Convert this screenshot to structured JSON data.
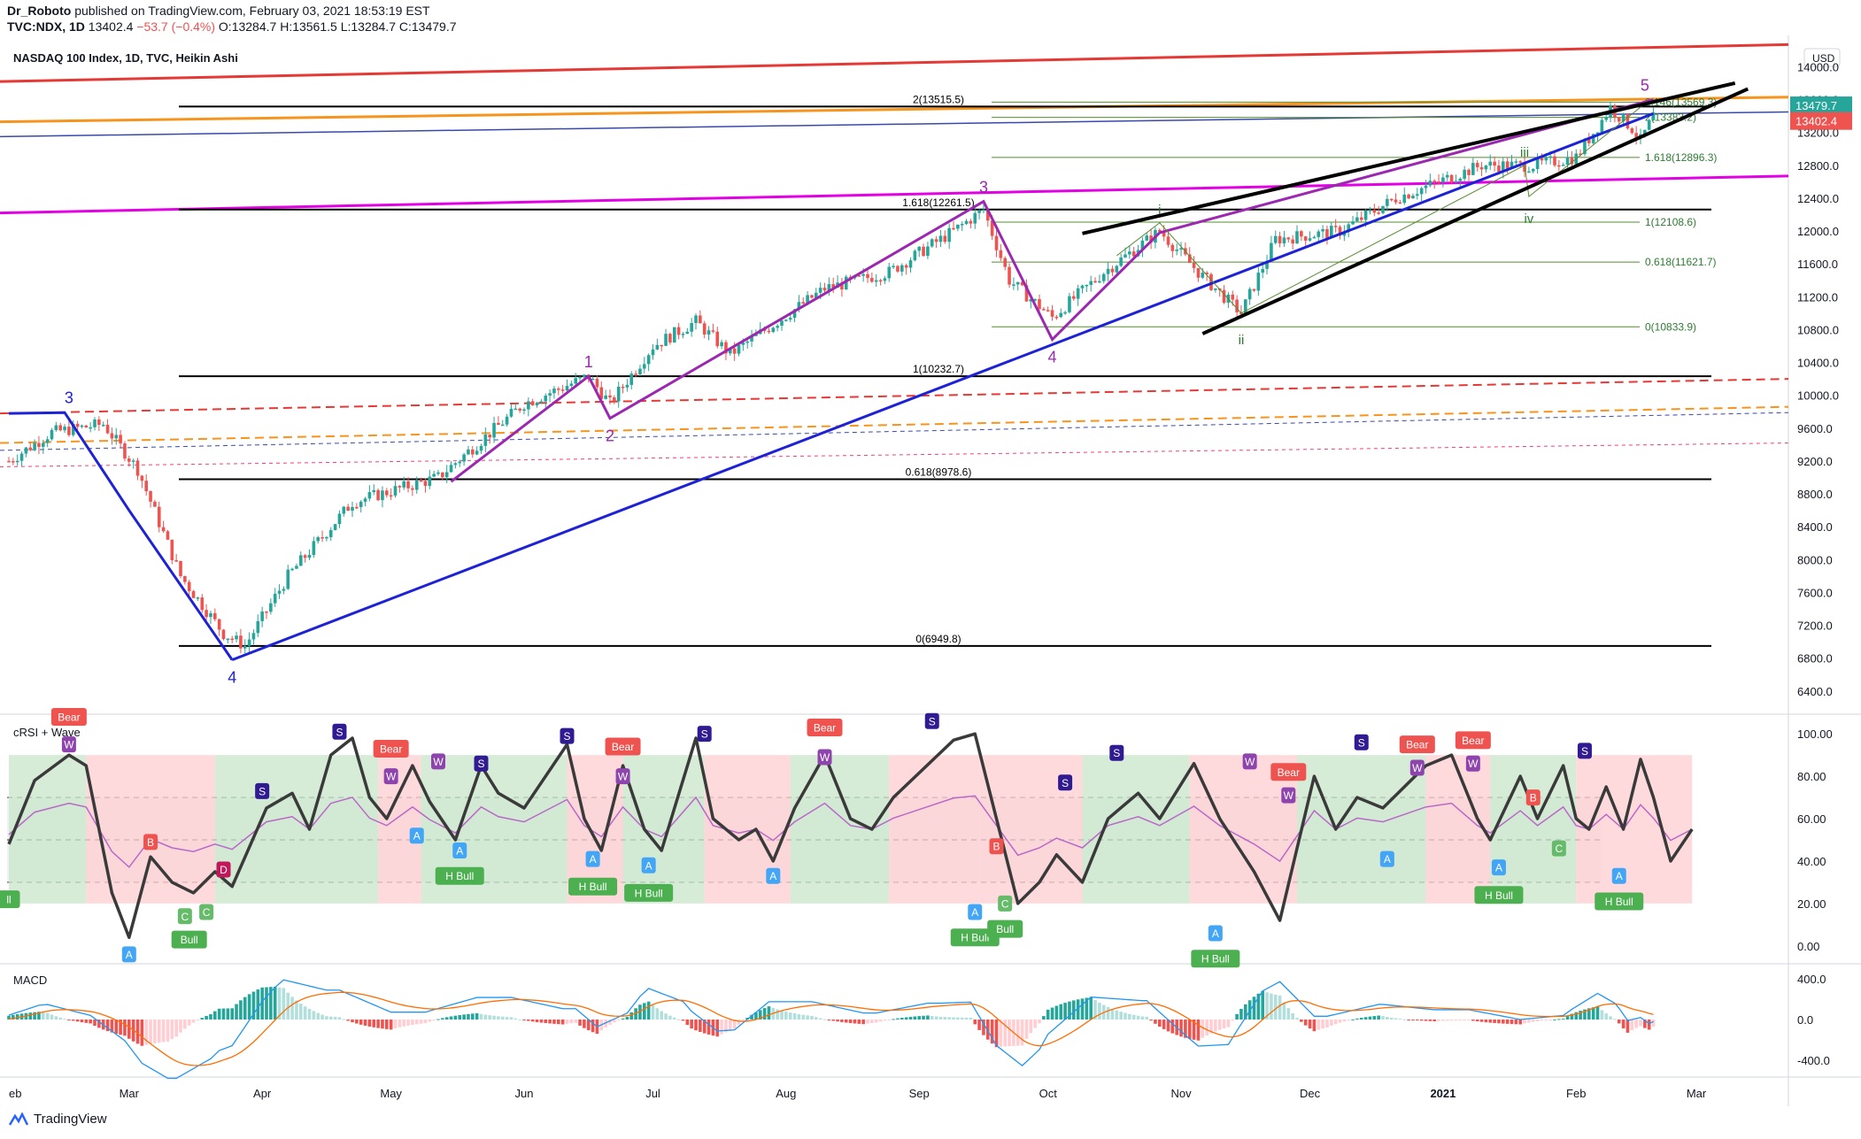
{
  "header": {
    "publisher": "Dr_Roboto",
    "published_text": "published on TradingView.com, February 03, 2021 18:53:19 EST",
    "symbol": "TVC:NDX, 1D",
    "price": "13402.4",
    "change": "−53.7 (−0.4%)",
    "ohlc": [
      "O:13284.7",
      "H:13561.5",
      "L:13284.7",
      "C:13479.7"
    ]
  },
  "brand": "TradingView",
  "colors": {
    "up": "#26a69a",
    "down": "#ef5350",
    "purple": "#9c27b0",
    "blue": "#1e22d6",
    "magenta": "#e400e4",
    "orange": "#f7941d",
    "red_line": "#e53935",
    "black": "#000000",
    "fib_green": "#2e7d32"
  },
  "chart_data": [
    {
      "type": "candlestick",
      "title": "NASDAQ 100 Index, 1D, TVC, Heikin Ashi",
      "currency": "USD",
      "y_ticks": [
        6400,
        6800,
        7200,
        7600,
        8000,
        8400,
        8800,
        9200,
        9600,
        10000,
        10400,
        10800,
        11200,
        11600,
        12000,
        12400,
        12800,
        13200,
        13600,
        14000
      ],
      "ylim": [
        6140,
        14220
      ],
      "x_ticks": [
        "eb",
        "Mar",
        "Apr",
        "May",
        "Jun",
        "Jul",
        "Aug",
        "Sep",
        "Oct",
        "Nov",
        "Dec",
        "2021",
        "Feb",
        "Mar"
      ],
      "last_price": "13479.7",
      "prev_price": "13402.4",
      "waypoints": [
        {
          "d": 0,
          "v": 9200
        },
        {
          "d": 10,
          "v": 9550
        },
        {
          "d": 22,
          "v": 9650
        },
        {
          "d": 30,
          "v": 9100
        },
        {
          "d": 40,
          "v": 7800
        },
        {
          "d": 50,
          "v": 7100
        },
        {
          "d": 55,
          "v": 6950
        },
        {
          "d": 65,
          "v": 7800
        },
        {
          "d": 80,
          "v": 8700
        },
        {
          "d": 100,
          "v": 9000
        },
        {
          "d": 120,
          "v": 9900
        },
        {
          "d": 135,
          "v": 10232
        },
        {
          "d": 140,
          "v": 9900
        },
        {
          "d": 150,
          "v": 10600
        },
        {
          "d": 160,
          "v": 10900
        },
        {
          "d": 168,
          "v": 10500
        },
        {
          "d": 190,
          "v": 11300
        },
        {
          "d": 205,
          "v": 11500
        },
        {
          "d": 220,
          "v": 12000
        },
        {
          "d": 227,
          "v": 12260
        },
        {
          "d": 233,
          "v": 11400
        },
        {
          "d": 243,
          "v": 10950
        },
        {
          "d": 255,
          "v": 11500
        },
        {
          "d": 268,
          "v": 12000
        },
        {
          "d": 277,
          "v": 11500
        },
        {
          "d": 287,
          "v": 11000
        },
        {
          "d": 295,
          "v": 11900
        },
        {
          "d": 310,
          "v": 12000
        },
        {
          "d": 323,
          "v": 12400
        },
        {
          "d": 333,
          "v": 12600
        },
        {
          "d": 343,
          "v": 12800
        },
        {
          "d": 355,
          "v": 12800
        },
        {
          "d": 365,
          "v": 12900
        },
        {
          "d": 373,
          "v": 13500
        },
        {
          "d": 378,
          "v": 13250
        },
        {
          "d": 380,
          "v": 13100
        },
        {
          "d": 383,
          "v": 13400
        }
      ],
      "fib_black": [
        {
          "label": "2(13515.5)",
          "value": 13515.5
        },
        {
          "label": "1.618(12261.5)",
          "value": 12261.5
        },
        {
          "label": "1(10232.7)",
          "value": 10232.7
        },
        {
          "label": "0.618(8978.6)",
          "value": 8978.6
        },
        {
          "label": "0(6949.8)",
          "value": 6949.8
        }
      ],
      "fib_green": [
        {
          "label": "2.146(13569.3)",
          "value": 13569.3
        },
        {
          "label": "2(13383.2)",
          "value": 13383.2
        },
        {
          "label": "1.618(12896.3)",
          "value": 12896.3
        },
        {
          "label": "1(12108.6)",
          "value": 12108.6
        },
        {
          "label": "0.618(11621.7)",
          "value": 11621.7
        },
        {
          "label": "0(10833.9)",
          "value": 10833.9
        }
      ],
      "wave_labels": [
        {
          "text": "3",
          "d": 14,
          "v": 9800,
          "color": "blue",
          "pos": "above"
        },
        {
          "text": "4",
          "d": 52,
          "v": 6780,
          "color": "blue",
          "pos": "below"
        },
        {
          "text": "1",
          "d": 135,
          "v": 10232,
          "color": "purple",
          "pos": "above"
        },
        {
          "text": "2",
          "d": 140,
          "v": 9720,
          "color": "purple",
          "pos": "below"
        },
        {
          "text": "3",
          "d": 227,
          "v": 12360,
          "color": "purple",
          "pos": "above"
        },
        {
          "text": "4",
          "d": 243,
          "v": 10680,
          "color": "purple",
          "pos": "below"
        },
        {
          "text": "5",
          "d": 381,
          "v": 13600,
          "color": "purple",
          "pos": "above"
        },
        {
          "text": "i",
          "d": 268,
          "v": 12100,
          "color": "green",
          "pos": "above"
        },
        {
          "text": "ii",
          "d": 287,
          "v": 10900,
          "color": "green",
          "pos": "below"
        },
        {
          "text": "iii",
          "d": 353,
          "v": 12800,
          "color": "green",
          "pos": "above"
        },
        {
          "text": "iv",
          "d": 354,
          "v": 12380,
          "color": "green",
          "pos": "below"
        }
      ]
    },
    {
      "type": "line",
      "title": "cRSI + Wave",
      "y_ticks": [
        0,
        20,
        40,
        60,
        80,
        100
      ],
      "ylim": [
        -8,
        108
      ],
      "bands": [
        30,
        50,
        70
      ],
      "crsi": [
        {
          "d": 0,
          "v": 48
        },
        {
          "d": 6,
          "v": 78
        },
        {
          "d": 14,
          "v": 90
        },
        {
          "d": 18,
          "v": 85
        },
        {
          "d": 24,
          "v": 25
        },
        {
          "d": 28,
          "v": 4
        },
        {
          "d": 33,
          "v": 42
        },
        {
          "d": 38,
          "v": 30
        },
        {
          "d": 43,
          "v": 25
        },
        {
          "d": 48,
          "v": 35
        },
        {
          "d": 52,
          "v": 28
        },
        {
          "d": 60,
          "v": 65
        },
        {
          "d": 66,
          "v": 72
        },
        {
          "d": 70,
          "v": 55
        },
        {
          "d": 75,
          "v": 90
        },
        {
          "d": 80,
          "v": 98
        },
        {
          "d": 84,
          "v": 70
        },
        {
          "d": 88,
          "v": 60
        },
        {
          "d": 94,
          "v": 85
        },
        {
          "d": 98,
          "v": 68
        },
        {
          "d": 104,
          "v": 50
        },
        {
          "d": 110,
          "v": 85
        },
        {
          "d": 114,
          "v": 72
        },
        {
          "d": 120,
          "v": 65
        },
        {
          "d": 130,
          "v": 95
        },
        {
          "d": 134,
          "v": 60
        },
        {
          "d": 138,
          "v": 45
        },
        {
          "d": 143,
          "v": 85
        },
        {
          "d": 148,
          "v": 55
        },
        {
          "d": 152,
          "v": 45
        },
        {
          "d": 160,
          "v": 98
        },
        {
          "d": 164,
          "v": 60
        },
        {
          "d": 170,
          "v": 50
        },
        {
          "d": 174,
          "v": 55
        },
        {
          "d": 178,
          "v": 40
        },
        {
          "d": 183,
          "v": 65
        },
        {
          "d": 190,
          "v": 90
        },
        {
          "d": 196,
          "v": 60
        },
        {
          "d": 201,
          "v": 55
        },
        {
          "d": 206,
          "v": 70
        },
        {
          "d": 220,
          "v": 97
        },
        {
          "d": 225,
          "v": 100
        },
        {
          "d": 230,
          "v": 60
        },
        {
          "d": 235,
          "v": 20
        },
        {
          "d": 240,
          "v": 30
        },
        {
          "d": 244,
          "v": 43
        },
        {
          "d": 250,
          "v": 30
        },
        {
          "d": 256,
          "v": 60
        },
        {
          "d": 263,
          "v": 72
        },
        {
          "d": 268,
          "v": 60
        },
        {
          "d": 276,
          "v": 86
        },
        {
          "d": 282,
          "v": 60
        },
        {
          "d": 290,
          "v": 35
        },
        {
          "d": 296,
          "v": 12
        },
        {
          "d": 304,
          "v": 80
        },
        {
          "d": 309,
          "v": 55
        },
        {
          "d": 314,
          "v": 70
        },
        {
          "d": 320,
          "v": 65
        },
        {
          "d": 330,
          "v": 85
        },
        {
          "d": 336,
          "v": 90
        },
        {
          "d": 342,
          "v": 60
        },
        {
          "d": 345,
          "v": 50
        },
        {
          "d": 352,
          "v": 80
        },
        {
          "d": 356,
          "v": 60
        },
        {
          "d": 362,
          "v": 85
        },
        {
          "d": 365,
          "v": 60
        },
        {
          "d": 368,
          "v": 55
        },
        {
          "d": 372,
          "v": 75
        },
        {
          "d": 376,
          "v": 55
        },
        {
          "d": 380,
          "v": 88
        },
        {
          "d": 383,
          "v": 70
        },
        {
          "d": 387,
          "v": 40
        },
        {
          "d": 392,
          "v": 55
        }
      ],
      "markers": [
        {
          "text": "W",
          "d": 14,
          "v": 95,
          "kind": "w"
        },
        {
          "text": "Bear",
          "d": 14,
          "v": 108,
          "kind": "bear"
        },
        {
          "text": "A",
          "d": 28,
          "v": -4,
          "kind": "a"
        },
        {
          "text": "B",
          "d": 33,
          "v": 49,
          "kind": "b"
        },
        {
          "text": "C",
          "d": 41,
          "v": 14,
          "kind": "c"
        },
        {
          "text": "C",
          "d": 46,
          "v": 16,
          "kind": "c"
        },
        {
          "text": "Bull",
          "d": 42,
          "v": 3,
          "kind": "bull"
        },
        {
          "text": "D",
          "d": 50,
          "v": 36,
          "kind": "d"
        },
        {
          "text": "S",
          "d": 59,
          "v": 73,
          "kind": "s"
        },
        {
          "text": "S",
          "d": 77,
          "v": 101,
          "kind": "s"
        },
        {
          "text": "Bear",
          "d": 89,
          "v": 93,
          "kind": "bear"
        },
        {
          "text": "W",
          "d": 89,
          "v": 80,
          "kind": "w"
        },
        {
          "text": "A",
          "d": 95,
          "v": 52,
          "kind": "a"
        },
        {
          "text": "W",
          "d": 100,
          "v": 87,
          "kind": "w"
        },
        {
          "text": "A",
          "d": 105,
          "v": 45,
          "kind": "a"
        },
        {
          "text": "H Bull",
          "d": 105,
          "v": 33,
          "kind": "bull"
        },
        {
          "text": "S",
          "d": 110,
          "v": 86,
          "kind": "s"
        },
        {
          "text": "S",
          "d": 130,
          "v": 99,
          "kind": "s"
        },
        {
          "text": "A",
          "d": 136,
          "v": 41,
          "kind": "a"
        },
        {
          "text": "H Bull",
          "d": 136,
          "v": 28,
          "kind": "bull"
        },
        {
          "text": "Bear",
          "d": 143,
          "v": 94,
          "kind": "bear"
        },
        {
          "text": "W",
          "d": 143,
          "v": 80,
          "kind": "w"
        },
        {
          "text": "A",
          "d": 149,
          "v": 38,
          "kind": "a"
        },
        {
          "text": "H Bull",
          "d": 149,
          "v": 25,
          "kind": "bull"
        },
        {
          "text": "S",
          "d": 162,
          "v": 100,
          "kind": "s"
        },
        {
          "text": "A",
          "d": 178,
          "v": 33,
          "kind": "a"
        },
        {
          "text": "Bear",
          "d": 190,
          "v": 103,
          "kind": "bear"
        },
        {
          "text": "W",
          "d": 190,
          "v": 89,
          "kind": "w"
        },
        {
          "text": "S",
          "d": 215,
          "v": 106,
          "kind": "s"
        },
        {
          "text": "A",
          "d": 225,
          "v": 16,
          "kind": "a"
        },
        {
          "text": "H Bull",
          "d": 225,
          "v": 4,
          "kind": "bull"
        },
        {
          "text": "B",
          "d": 230,
          "v": 47,
          "kind": "b"
        },
        {
          "text": "C",
          "d": 232,
          "v": 20,
          "kind": "c"
        },
        {
          "text": "Bull",
          "d": 232,
          "v": 8,
          "kind": "bull"
        },
        {
          "text": "S",
          "d": 246,
          "v": 77,
          "kind": "s"
        },
        {
          "text": "S",
          "d": 258,
          "v": 91,
          "kind": "s"
        },
        {
          "text": "A",
          "d": 281,
          "v": 6,
          "kind": "a"
        },
        {
          "text": "H Bull",
          "d": 281,
          "v": -6,
          "kind": "bull"
        },
        {
          "text": "W",
          "d": 289,
          "v": 87,
          "kind": "w"
        },
        {
          "text": "Bear",
          "d": 298,
          "v": 82,
          "kind": "bear"
        },
        {
          "text": "W",
          "d": 298,
          "v": 71,
          "kind": "w"
        },
        {
          "text": "S",
          "d": 315,
          "v": 96,
          "kind": "s"
        },
        {
          "text": "A",
          "d": 321,
          "v": 41,
          "kind": "a"
        },
        {
          "text": "Bear",
          "d": 328,
          "v": 95,
          "kind": "bear"
        },
        {
          "text": "W",
          "d": 328,
          "v": 84,
          "kind": "w"
        },
        {
          "text": "Bear",
          "d": 341,
          "v": 97,
          "kind": "bear"
        },
        {
          "text": "W",
          "d": 341,
          "v": 86,
          "kind": "w"
        },
        {
          "text": "A",
          "d": 347,
          "v": 37,
          "kind": "a"
        },
        {
          "text": "H Bull",
          "d": 347,
          "v": 24,
          "kind": "bull"
        },
        {
          "text": "B",
          "d": 355,
          "v": 70,
          "kind": "b"
        },
        {
          "text": "C",
          "d": 361,
          "v": 46,
          "kind": "c"
        },
        {
          "text": "S",
          "d": 367,
          "v": 92,
          "kind": "s"
        },
        {
          "text": "A",
          "d": 375,
          "v": 33,
          "kind": "a"
        },
        {
          "text": "H Bull",
          "d": 375,
          "v": 21,
          "kind": "bull"
        },
        {
          "text": "ll",
          "d": 0,
          "v": 22,
          "kind": "bull"
        }
      ]
    },
    {
      "type": "histogram",
      "title": "MACD",
      "y_ticks": [
        -400,
        0,
        400
      ],
      "ylim": [
        -520,
        520
      ]
    }
  ]
}
